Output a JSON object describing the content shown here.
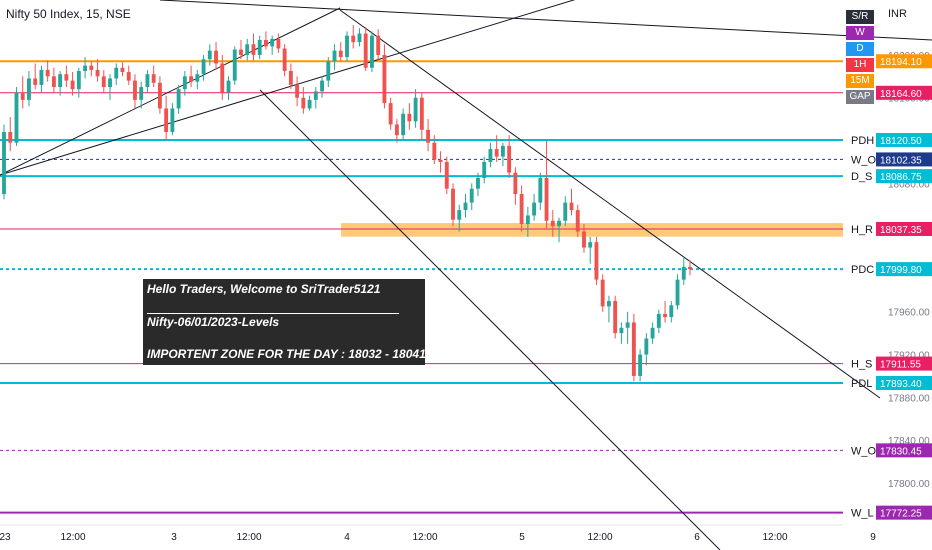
{
  "header": {
    "symbol_title": "Nifty 50 Index, 15, NSE",
    "currency": "INR"
  },
  "toolbar_buttons": [
    {
      "label": "S/R",
      "color": "#2a2e39"
    },
    {
      "label": "W",
      "color": "#9c27b0"
    },
    {
      "label": "D",
      "color": "#2196f3"
    },
    {
      "label": "1H",
      "color": "#f23645"
    },
    {
      "label": "15M",
      "color": "#ff9800"
    },
    {
      "label": "GAP",
      "color": "#787b86"
    }
  ],
  "annotation": {
    "line1": "Hello Traders,  Welcome to SriTrader5121",
    "line2": "Nifty-06/01/2023-Levels",
    "line3": "IMPORTENT ZONE FOR THE DAY :  18032 - 18041"
  },
  "chart_data": {
    "type": "candlestick",
    "ylim": [
      17760,
      18230
    ],
    "y_ticks": [
      17800,
      17840,
      17880,
      17920,
      17960,
      18000,
      18040,
      18080,
      18120,
      18160,
      18200
    ],
    "x_ticks": [
      "23",
      "12:00",
      "3",
      "12:00",
      "4",
      "12:00",
      "5",
      "12:00",
      "6",
      "12:00",
      "9"
    ],
    "levels": [
      {
        "name": "",
        "value": 18194.1,
        "color": "#ff9800",
        "style": "solid",
        "width": 2
      },
      {
        "name": "",
        "value": 18164.6,
        "color": "#e91e63",
        "style": "solid",
        "width": 1
      },
      {
        "name": "PDH",
        "value": 18120.5,
        "color": "#00bcd4",
        "style": "solid",
        "width": 2
      },
      {
        "name": "W_O",
        "value": 18102.35,
        "color": "#1e3a8a",
        "style": "dashed",
        "width": 1
      },
      {
        "name": "D_S",
        "value": 18086.75,
        "color": "#00bcd4",
        "style": "solid",
        "width": 2
      },
      {
        "name": "H_R",
        "value": 18037.35,
        "color": "#e91e63",
        "style": "solid",
        "width": 1
      },
      {
        "name": "PDC",
        "value": 17999.8,
        "color": "#00bcd4",
        "style": "dashed",
        "width": 2
      },
      {
        "name": "H_S",
        "value": 17911.55,
        "color": "#e91e63",
        "style": "solid",
        "width": 1
      },
      {
        "name": "PDL",
        "value": 17893.4,
        "color": "#00bcd4",
        "style": "solid",
        "width": 2
      },
      {
        "name": "W_O",
        "value": 17830.45,
        "color": "#9c27b0",
        "style": "dashed",
        "width": 1
      },
      {
        "name": "W_L",
        "value": 17772.25,
        "color": "#9c27b0",
        "style": "solid",
        "width": 2
      }
    ],
    "zone": {
      "low": 18032,
      "high": 18041,
      "color": "#ffb74d"
    },
    "last_price": 17999.8,
    "candles": [
      [
        18070,
        18135,
        18065,
        18128
      ],
      [
        18128,
        18142,
        18110,
        18118
      ],
      [
        18118,
        18170,
        18115,
        18165
      ],
      [
        18165,
        18180,
        18150,
        18158
      ],
      [
        18158,
        18185,
        18152,
        18178
      ],
      [
        18178,
        18192,
        18168,
        18172
      ],
      [
        18172,
        18190,
        18165,
        18186
      ],
      [
        18186,
        18195,
        18175,
        18180
      ],
      [
        18180,
        18188,
        18165,
        18170
      ],
      [
        18170,
        18185,
        18162,
        18182
      ],
      [
        18182,
        18190,
        18170,
        18176
      ],
      [
        18176,
        18184,
        18162,
        18168
      ],
      [
        18168,
        18188,
        18160,
        18185
      ],
      [
        18185,
        18198,
        18178,
        18190
      ],
      [
        18190,
        18194,
        18180,
        18186
      ],
      [
        18186,
        18196,
        18175,
        18180
      ],
      [
        18180,
        18186,
        18165,
        18170
      ],
      [
        18170,
        18182,
        18158,
        18178
      ],
      [
        18178,
        18192,
        18172,
        18188
      ],
      [
        18188,
        18193,
        18180,
        18184
      ],
      [
        18184,
        18190,
        18172,
        18176
      ],
      [
        18176,
        18182,
        18150,
        18158
      ],
      [
        18158,
        18175,
        18150,
        18170
      ],
      [
        18170,
        18186,
        18165,
        18182
      ],
      [
        18182,
        18190,
        18170,
        18174
      ],
      [
        18174,
        18180,
        18145,
        18150
      ],
      [
        18150,
        18162,
        18120,
        18128
      ],
      [
        18128,
        18155,
        18125,
        18150
      ],
      [
        18150,
        18172,
        18145,
        18168
      ],
      [
        18168,
        18185,
        18162,
        18180
      ],
      [
        18180,
        18190,
        18170,
        18175
      ],
      [
        18175,
        18186,
        18168,
        18182
      ],
      [
        18182,
        18200,
        18176,
        18196
      ],
      [
        18196,
        18210,
        18190,
        18204
      ],
      [
        18204,
        18212,
        18186,
        18192
      ],
      [
        18192,
        18200,
        18158,
        18165
      ],
      [
        18165,
        18180,
        18158,
        18176
      ],
      [
        18176,
        18208,
        18172,
        18205
      ],
      [
        18205,
        18214,
        18196,
        18200
      ],
      [
        18200,
        18215,
        18195,
        18210
      ],
      [
        18210,
        18220,
        18195,
        18200
      ],
      [
        18200,
        18218,
        18196,
        18214
      ],
      [
        18214,
        18222,
        18205,
        18208
      ],
      [
        18208,
        18218,
        18200,
        18215
      ],
      [
        18215,
        18220,
        18202,
        18206
      ],
      [
        18206,
        18210,
        18180,
        18185
      ],
      [
        18185,
        18192,
        18168,
        18172
      ],
      [
        18172,
        18180,
        18152,
        18160
      ],
      [
        18160,
        18170,
        18145,
        18150
      ],
      [
        18150,
        18162,
        18148,
        18158
      ],
      [
        18158,
        18170,
        18150,
        18166
      ],
      [
        18166,
        18180,
        18160,
        18176
      ],
      [
        18176,
        18198,
        18170,
        18194
      ],
      [
        18194,
        18210,
        18186,
        18204
      ],
      [
        18204,
        18212,
        18194,
        18198
      ],
      [
        18198,
        18222,
        18194,
        18218
      ],
      [
        18218,
        18228,
        18206,
        18212
      ],
      [
        18212,
        18225,
        18208,
        18220
      ],
      [
        18220,
        18226,
        18185,
        18188
      ],
      [
        18188,
        18222,
        18184,
        18218
      ],
      [
        18218,
        18224,
        18195,
        18200
      ],
      [
        18200,
        18210,
        18150,
        18155
      ],
      [
        18155,
        18160,
        18130,
        18135
      ],
      [
        18135,
        18140,
        18118,
        18125
      ],
      [
        18125,
        18150,
        18120,
        18145
      ],
      [
        18145,
        18155,
        18130,
        18138
      ],
      [
        18138,
        18168,
        18132,
        18160
      ],
      [
        18160,
        18165,
        18120,
        18130
      ],
      [
        18130,
        18140,
        18110,
        18118
      ],
      [
        18118,
        18125,
        18098,
        18102
      ],
      [
        18102,
        18110,
        18090,
        18100
      ],
      [
        18100,
        18105,
        18070,
        18075
      ],
      [
        18075,
        18080,
        18040,
        18046
      ],
      [
        18046,
        18060,
        18035,
        18055
      ],
      [
        18055,
        18070,
        18048,
        18062
      ],
      [
        18062,
        18080,
        18055,
        18075
      ],
      [
        18075,
        18090,
        18068,
        18085
      ],
      [
        18085,
        18105,
        18080,
        18100
      ],
      [
        18100,
        18118,
        18095,
        18112
      ],
      [
        18112,
        18125,
        18100,
        18105
      ],
      [
        18105,
        18118,
        18096,
        18115
      ],
      [
        18115,
        18125,
        18085,
        18090
      ],
      [
        18090,
        18095,
        18060,
        18070
      ],
      [
        18070,
        18078,
        18035,
        18042
      ],
      [
        18042,
        18058,
        18030,
        18050
      ],
      [
        18050,
        18070,
        18045,
        18062
      ],
      [
        18062,
        18090,
        18055,
        18085
      ],
      [
        18085,
        18120,
        18038,
        18045
      ],
      [
        18045,
        18055,
        18030,
        18040
      ],
      [
        18040,
        18048,
        18025,
        18045
      ],
      [
        18045,
        18068,
        18040,
        18062
      ],
      [
        18062,
        18075,
        18050,
        18055
      ],
      [
        18055,
        18060,
        18030,
        18035
      ],
      [
        18035,
        18042,
        18015,
        18020
      ],
      [
        18020,
        18030,
        18005,
        18025
      ],
      [
        18025,
        18030,
        17985,
        17990
      ],
      [
        17990,
        17995,
        17960,
        17965
      ],
      [
        17965,
        17975,
        17950,
        17970
      ],
      [
        17970,
        17975,
        17935,
        17940
      ],
      [
        17940,
        17950,
        17930,
        17945
      ],
      [
        17945,
        17960,
        17930,
        17950
      ],
      [
        17950,
        17958,
        17895,
        17900
      ],
      [
        17900,
        17925,
        17895,
        17920
      ],
      [
        17920,
        17940,
        17910,
        17935
      ],
      [
        17935,
        17950,
        17930,
        17945
      ],
      [
        17945,
        17962,
        17940,
        17958
      ],
      [
        17958,
        17970,
        17950,
        17955
      ],
      [
        17955,
        17970,
        17950,
        17966
      ],
      [
        17966,
        17995,
        17962,
        17990
      ],
      [
        17990,
        18010,
        17985,
        18002
      ],
      [
        18002,
        18008,
        17994,
        17999.8
      ]
    ]
  }
}
